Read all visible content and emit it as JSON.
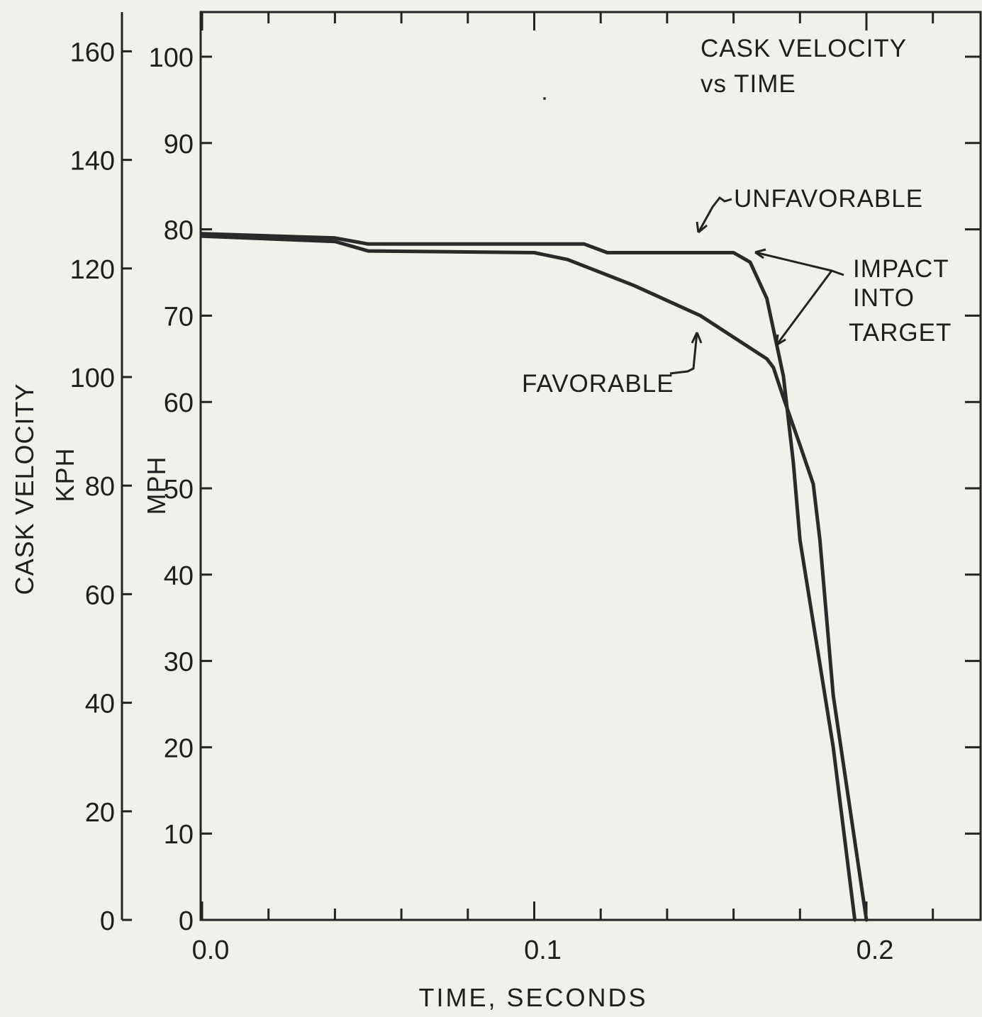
{
  "chart_data": {
    "type": "line",
    "title": "CASK VELOCITY",
    "subtitle": "vs TIME",
    "xlabel": "TIME, SECONDS",
    "ylabel": "CASK VELOCITY",
    "ylabel_left_unit": "KPH",
    "ylabel_right_unit": "MPH",
    "xlim": [
      0.0,
      0.235
    ],
    "ylim_mph": [
      0,
      105
    ],
    "ylim_kph": [
      0,
      169
    ],
    "x_ticks": [
      {
        "value": 0.0,
        "label": "0.0"
      },
      {
        "value": 0.1,
        "label": "0.1"
      },
      {
        "value": 0.2,
        "label": "0.2"
      }
    ],
    "x_minor_step": 0.02,
    "mph_ticks": [
      "0",
      "10",
      "20",
      "30",
      "40",
      "50",
      "60",
      "70",
      "80",
      "90",
      "100"
    ],
    "kph_ticks": [
      "0",
      "20",
      "40",
      "60",
      "80",
      "100",
      "120",
      "140",
      "160"
    ],
    "grid": false,
    "series": [
      {
        "name": "UNFAVORABLE",
        "x": [
          0.0,
          0.04,
          0.05,
          0.115,
          0.122,
          0.16,
          0.165,
          0.17,
          0.175,
          0.178,
          0.18,
          0.19,
          0.1965
        ],
        "y": [
          79.5,
          79.0,
          78.3,
          78.3,
          77.3,
          77.3,
          76.2,
          72.0,
          63.0,
          53.0,
          44.0,
          20.0,
          0.0
        ]
      },
      {
        "name": "FAVORABLE",
        "x": [
          0.0,
          0.04,
          0.05,
          0.1,
          0.11,
          0.13,
          0.15,
          0.17,
          0.172,
          0.175,
          0.18,
          0.184,
          0.186,
          0.19,
          0.2
        ],
        "y": [
          79.2,
          78.6,
          77.5,
          77.3,
          76.5,
          73.5,
          70.0,
          65.0,
          64.0,
          60.5,
          55.0,
          50.5,
          44.0,
          26.0,
          0.0
        ]
      }
    ],
    "annotations": [
      {
        "text": "UNFAVORABLE",
        "points_to": "UNFAVORABLE"
      },
      {
        "text": "FAVORABLE",
        "points_to": "FAVORABLE"
      },
      {
        "lines": [
          "IMPACT",
          "INTO",
          "TARGET"
        ]
      }
    ]
  }
}
